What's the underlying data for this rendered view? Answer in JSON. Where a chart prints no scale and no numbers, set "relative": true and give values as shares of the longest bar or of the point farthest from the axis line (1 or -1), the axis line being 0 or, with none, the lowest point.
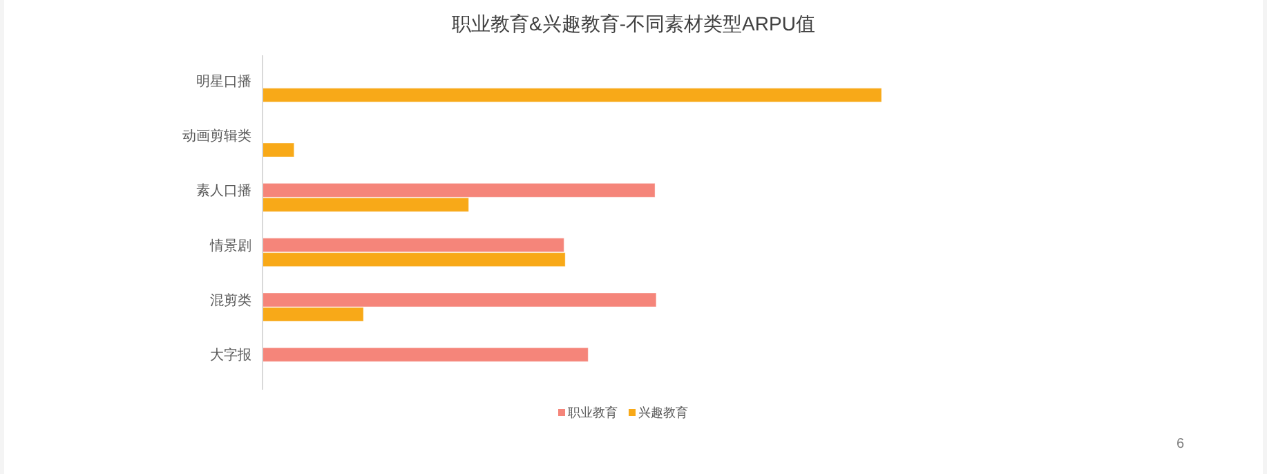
{
  "chart_data": {
    "type": "bar",
    "orientation": "horizontal",
    "relative": true,
    "title": "职业教育&兴趣教育-不同素材类型ARPU值",
    "categories": [
      "明星口播",
      "动画剪辑类",
      "素人口播",
      "情景剧",
      "混剪类",
      "大字报"
    ],
    "series": [
      {
        "name": "职业教育",
        "color": "#f5857a",
        "values": [
          null,
          null,
          0.634,
          0.487,
          0.636,
          0.526
        ]
      },
      {
        "name": "兴趣教育",
        "color": "#f8a918",
        "values": [
          1,
          0.051,
          0.333,
          0.489,
          0.163,
          null
        ]
      }
    ],
    "legend": "bottom",
    "annotations": [
      "6"
    ]
  }
}
